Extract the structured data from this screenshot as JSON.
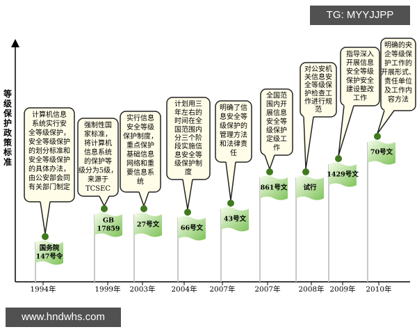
{
  "axis_label": "等级保护政策标准",
  "milestones": [
    {
      "year": "1994年",
      "flag": [
        "国务院",
        "147号令"
      ],
      "callout": [
        "计算机信息",
        "系统实行安",
        "全等级保护，",
        "安全等级保护",
        "的划分标准和",
        "安全等级保护",
        "的具体办法，",
        "由公安部会同",
        "有关部门制定"
      ]
    },
    {
      "year": "1999年",
      "flag": [
        "GB",
        "17859"
      ],
      "callout": [
        "强制性国",
        "家标准，",
        "将计算机",
        "信息系统",
        "的保护等",
        "级分为5级，",
        "来源于",
        "TCSEC"
      ]
    },
    {
      "year": "2003年",
      "flag": [
        "27号文"
      ],
      "callout": [
        "实行信息",
        "安全等级",
        "保护制度，",
        "重点保护",
        "基础信息",
        "网络和重",
        "要信息系",
        "统"
      ]
    },
    {
      "year": "2004年",
      "flag": [
        "66号文"
      ],
      "callout": [
        "计划用三",
        "年左右的",
        "时间在全",
        "国范围内",
        "分三个阶",
        "段实施信",
        "息安全等",
        "级保护制",
        "度"
      ]
    },
    {
      "year": "2007年",
      "flag": [
        "43号文"
      ],
      "callout": [
        "明确了信",
        "息安全等",
        "级保护的",
        "管理方法",
        "和法律责",
        "任"
      ]
    },
    {
      "year": "2007年",
      "flag": [
        "861号文"
      ],
      "callout": [
        "全国范",
        "围内开",
        "展信息",
        "安全等",
        "级保护",
        "定级工",
        "作"
      ]
    },
    {
      "year": "2008年",
      "flag": [
        "试行"
      ],
      "callout": [
        "对公安机",
        "关信息安",
        "全等级保",
        "护检查工",
        "作进行规",
        "范"
      ]
    },
    {
      "year": "2009年",
      "flag": [
        "1429号文"
      ],
      "callout": [
        "指导深入",
        "开展信息",
        "安全等级",
        "保护安全",
        "建设整改",
        "工作"
      ]
    },
    {
      "year": "2010年",
      "flag": [
        "70号文"
      ],
      "callout": [
        "明确的央",
        "企等级保",
        "护工作的",
        "开展形式、",
        "责任单位",
        "及工作内",
        "容方法"
      ]
    }
  ],
  "watermark_top": "TG: MYYJJPP",
  "watermark_bottom": "www.hndwhs.com"
}
